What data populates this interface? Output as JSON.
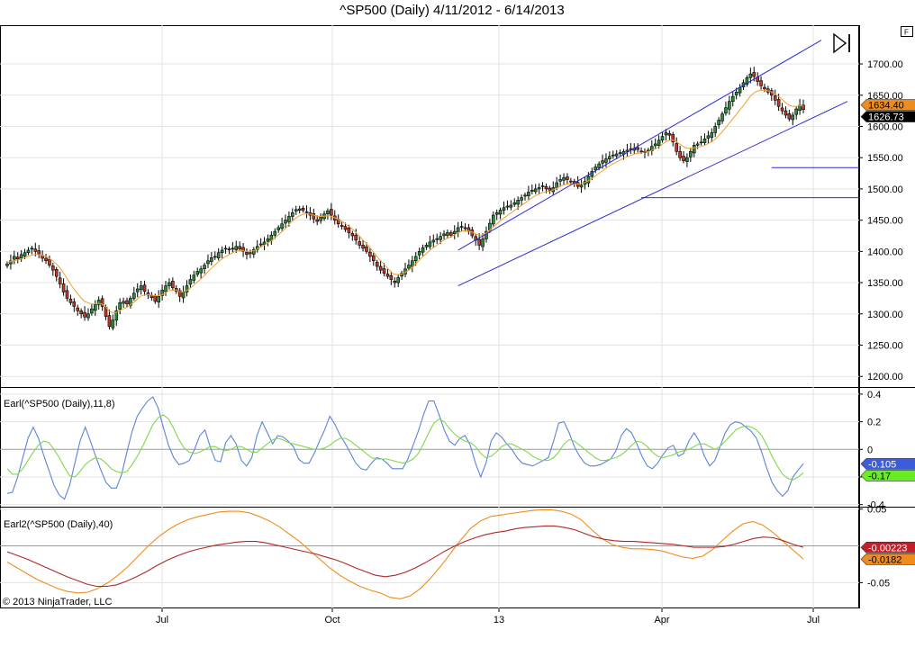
{
  "title": "^SP500 (Daily)  4/11/2012 - 6/14/2013",
  "copyright": "© 2013 NinjaTrader, LLC",
  "corner_button": "F",
  "x_ticks": [
    "Jul",
    "Oct",
    "13",
    "Apr",
    "Jul"
  ],
  "chart_data": [
    {
      "type": "candlestick",
      "title": "^SP500 (Daily)  4/11/2012 - 6/14/2013",
      "y_ticks": [
        "1700.00",
        "1650.00",
        "1600.00",
        "1550.00",
        "1500.00",
        "1450.00",
        "1400.00",
        "1350.00",
        "1300.00",
        "1250.00",
        "1200.00"
      ],
      "ylim": [
        1183,
        1762
      ],
      "grid": true,
      "price_marks": [
        {
          "label": "1634.40",
          "value": 1634.4,
          "color": "#f08c1c"
        },
        {
          "label": "1626.73",
          "value": 1626.73,
          "color": "#000000"
        }
      ],
      "close_series": [
        1380,
        1385,
        1392,
        1388,
        1395,
        1398,
        1402,
        1405,
        1400,
        1396,
        1389,
        1385,
        1378,
        1370,
        1360,
        1348,
        1335,
        1325,
        1318,
        1312,
        1305,
        1300,
        1295,
        1300,
        1308,
        1315,
        1322,
        1312,
        1296,
        1280,
        1290,
        1305,
        1318,
        1320,
        1316,
        1325,
        1333,
        1340,
        1345,
        1336,
        1330,
        1326,
        1320,
        1328,
        1338,
        1345,
        1350,
        1342,
        1336,
        1328,
        1335,
        1345,
        1355,
        1362,
        1368,
        1372,
        1378,
        1385,
        1390,
        1392,
        1398,
        1402,
        1405,
        1403,
        1405,
        1408,
        1404,
        1400,
        1395,
        1398,
        1403,
        1408,
        1412,
        1415,
        1420,
        1426,
        1432,
        1438,
        1444,
        1450,
        1456,
        1462,
        1467,
        1468,
        1466,
        1462,
        1458,
        1452,
        1448,
        1455,
        1460,
        1465,
        1458,
        1450,
        1444,
        1440,
        1435,
        1430,
        1425,
        1418,
        1410,
        1405,
        1400,
        1392,
        1385,
        1376,
        1370,
        1365,
        1360,
        1355,
        1350,
        1358,
        1365,
        1372,
        1378,
        1385,
        1392,
        1400,
        1406,
        1410,
        1415,
        1418,
        1420,
        1424,
        1428,
        1430,
        1426,
        1432,
        1438,
        1440,
        1438,
        1432,
        1425,
        1418,
        1410,
        1420,
        1432,
        1445,
        1458,
        1462,
        1466,
        1470,
        1472,
        1474,
        1478,
        1482,
        1486,
        1490,
        1495,
        1498,
        1500,
        1502,
        1505,
        1500,
        1498,
        1502,
        1510,
        1515,
        1518,
        1515,
        1512,
        1508,
        1504,
        1506,
        1512,
        1520,
        1528,
        1535,
        1540,
        1545,
        1548,
        1552,
        1554,
        1556,
        1558,
        1560,
        1562,
        1563,
        1565,
        1563,
        1560,
        1558,
        1562,
        1568,
        1572,
        1578,
        1584,
        1590,
        1586,
        1575,
        1560,
        1550,
        1545,
        1550,
        1560,
        1570,
        1572,
        1575,
        1580,
        1585,
        1590,
        1600,
        1610,
        1620,
        1630,
        1640,
        1648,
        1655,
        1662,
        1670,
        1678,
        1684,
        1680,
        1672,
        1665,
        1660,
        1655,
        1650,
        1642,
        1632,
        1625,
        1618,
        1612,
        1618,
        1628,
        1634,
        1627
      ],
      "ma_series": [
        1382,
        1384,
        1386,
        1386,
        1388,
        1390,
        1392,
        1394,
        1395,
        1395,
        1394,
        1392,
        1389,
        1385,
        1380,
        1374,
        1366,
        1357,
        1348,
        1340,
        1333,
        1326,
        1320,
        1318,
        1316,
        1316,
        1317,
        1316,
        1312,
        1305,
        1302,
        1302,
        1305,
        1308,
        1310,
        1314,
        1318,
        1323,
        1328,
        1330,
        1331,
        1330,
        1329,
        1329,
        1330,
        1333,
        1337,
        1338,
        1338,
        1336,
        1335,
        1337,
        1340,
        1345,
        1350,
        1355,
        1360,
        1366,
        1372,
        1377,
        1382,
        1387,
        1391,
        1394,
        1397,
        1400,
        1401,
        1401,
        1400,
        1400,
        1401,
        1403,
        1406,
        1409,
        1412,
        1416,
        1420,
        1425,
        1430,
        1435,
        1441,
        1447,
        1452,
        1456,
        1459,
        1460,
        1460,
        1459,
        1457,
        1456,
        1456,
        1457,
        1457,
        1455,
        1452,
        1449,
        1446,
        1442,
        1438,
        1433,
        1427,
        1421,
        1415,
        1409,
        1402,
        1395,
        1388,
        1382,
        1376,
        1370,
        1364,
        1363,
        1363,
        1365,
        1368,
        1372,
        1377,
        1383,
        1389,
        1394,
        1399,
        1404,
        1408,
        1412,
        1416,
        1420,
        1422,
        1425,
        1428,
        1431,
        1433,
        1433,
        1432,
        1430,
        1427,
        1426,
        1427,
        1431,
        1436,
        1441,
        1446,
        1451,
        1455,
        1459,
        1463,
        1467,
        1471,
        1475,
        1479,
        1483,
        1487,
        1490,
        1493,
        1495,
        1496,
        1497,
        1499,
        1502,
        1505,
        1507,
        1508,
        1508,
        1508,
        1508,
        1509,
        1511,
        1514,
        1518,
        1522,
        1526,
        1530,
        1534,
        1538,
        1541,
        1544,
        1547,
        1550,
        1552,
        1554,
        1556,
        1557,
        1558,
        1559,
        1560,
        1562,
        1565,
        1568,
        1572,
        1576,
        1578,
        1578,
        1575,
        1571,
        1567,
        1565,
        1565,
        1566,
        1567,
        1568,
        1570,
        1573,
        1576,
        1580,
        1586,
        1592,
        1599,
        1606,
        1613,
        1620,
        1627,
        1634,
        1642,
        1649,
        1654,
        1657,
        1658,
        1658,
        1657,
        1655,
        1652,
        1648,
        1643,
        1638,
        1634,
        1632,
        1632,
        1634,
        1632
      ]
    },
    {
      "type": "line",
      "title": "Earl(^SP500 (Daily),11,8)",
      "y_ticks": [
        "0.4",
        "0.2",
        "0",
        "-0.2",
        "-0.4"
      ],
      "ylim": [
        -0.415,
        0.445
      ],
      "price_marks": [
        {
          "label": "-0.105",
          "value": -0.105,
          "color": "#3b5ed8"
        },
        {
          "label": "-0.17",
          "value": -0.17,
          "color": "#66ee22"
        }
      ],
      "series": [
        {
          "color": "#5b84d6",
          "values": [
            -0.32,
            -0.31,
            -0.2,
            -0.06,
            0.08,
            0.16,
            0.08,
            -0.04,
            -0.15,
            -0.26,
            -0.33,
            -0.36,
            -0.26,
            -0.1,
            0.06,
            0.16,
            0.06,
            -0.05,
            -0.15,
            -0.24,
            -0.28,
            -0.28,
            -0.18,
            -0.02,
            0.13,
            0.24,
            0.3,
            0.35,
            0.38,
            0.3,
            0.16,
            0.03,
            -0.06,
            -0.11,
            -0.1,
            -0.08,
            0.0,
            0.1,
            0.14,
            0.02,
            -0.08,
            -0.09,
            0.05,
            0.1,
            0.04,
            -0.08,
            -0.12,
            -0.06,
            0.1,
            0.2,
            0.12,
            0.04,
            0.1,
            0.09,
            0.06,
            0.02,
            -0.07,
            -0.1,
            -0.1,
            -0.03,
            0.06,
            0.14,
            0.24,
            0.18,
            0.1,
            0.04,
            -0.03,
            -0.1,
            -0.14,
            -0.15,
            -0.1,
            -0.06,
            -0.07,
            -0.1,
            -0.14,
            -0.14,
            -0.14,
            -0.07,
            0.03,
            0.13,
            0.25,
            0.35,
            0.35,
            0.25,
            0.14,
            0.06,
            0.03,
            0.08,
            0.1,
            0.03,
            -0.1,
            -0.2,
            -0.1,
            0.06,
            0.12,
            0.09,
            0.04,
            0.0,
            -0.06,
            -0.1,
            -0.11,
            -0.12,
            -0.1,
            -0.08,
            -0.06,
            0.06,
            0.19,
            0.2,
            0.12,
            0.02,
            -0.05,
            -0.1,
            -0.12,
            -0.12,
            -0.11,
            -0.09,
            -0.07,
            -0.01,
            0.1,
            0.15,
            0.12,
            0.04,
            -0.05,
            -0.12,
            -0.14,
            -0.1,
            -0.04,
            0.01,
            0.03,
            -0.05,
            -0.03,
            0.06,
            0.12,
            0.06,
            -0.05,
            -0.12,
            -0.08,
            0.02,
            0.12,
            0.18,
            0.2,
            0.19,
            0.16,
            0.13,
            0.08,
            -0.02,
            -0.14,
            -0.24,
            -0.3,
            -0.34,
            -0.3,
            -0.2,
            -0.15,
            -0.105
          ]
        },
        {
          "color": "#7ed84a",
          "values": [
            -0.14,
            -0.18,
            -0.18,
            -0.14,
            -0.08,
            -0.02,
            0.03,
            0.06,
            0.05,
            0.0,
            -0.06,
            -0.13,
            -0.19,
            -0.2,
            -0.16,
            -0.11,
            -0.08,
            -0.06,
            -0.07,
            -0.1,
            -0.14,
            -0.16,
            -0.17,
            -0.16,
            -0.11,
            -0.05,
            0.02,
            0.1,
            0.18,
            0.23,
            0.25,
            0.22,
            0.15,
            0.07,
            0.01,
            -0.02,
            -0.03,
            -0.02,
            0.0,
            0.02,
            0.02,
            0.0,
            -0.01,
            0.0,
            0.02,
            0.02,
            0.0,
            -0.02,
            -0.02,
            0.01,
            0.04,
            0.07,
            0.08,
            0.07,
            0.05,
            0.04,
            0.03,
            0.02,
            0.01,
            0.0,
            0.0,
            0.01,
            0.03,
            0.06,
            0.08,
            0.08,
            0.06,
            0.03,
            0.0,
            -0.03,
            -0.06,
            -0.07,
            -0.07,
            -0.07,
            -0.08,
            -0.09,
            -0.1,
            -0.09,
            -0.07,
            -0.03,
            0.04,
            0.12,
            0.19,
            0.22,
            0.2,
            0.15,
            0.11,
            0.08,
            0.06,
            0.05,
            0.02,
            -0.03,
            -0.06,
            -0.05,
            -0.02,
            0.02,
            0.04,
            0.04,
            0.02,
            0.0,
            -0.02,
            -0.05,
            -0.07,
            -0.08,
            -0.08,
            -0.06,
            -0.02,
            0.04,
            0.07,
            0.06,
            0.03,
            0.0,
            -0.03,
            -0.06,
            -0.08,
            -0.08,
            -0.07,
            -0.06,
            -0.04,
            -0.01,
            0.03,
            0.06,
            0.05,
            0.02,
            -0.02,
            -0.05,
            -0.06,
            -0.05,
            -0.04,
            -0.02,
            -0.01,
            0.0,
            0.02,
            0.04,
            0.04,
            0.02,
            0.0,
            0.02,
            0.06,
            0.1,
            0.14,
            0.16,
            0.17,
            0.16,
            0.14,
            0.1,
            0.03,
            -0.05,
            -0.12,
            -0.18,
            -0.21,
            -0.22,
            -0.2,
            -0.17
          ]
        }
      ]
    },
    {
      "type": "line",
      "title": "Earl2(^SP500 (Daily),40)",
      "y_ticks": [
        "0.05",
        "-0.05"
      ],
      "ylim": [
        -0.085,
        0.052
      ],
      "price_marks": [
        {
          "label": "-0.00223",
          "value": -0.00223,
          "color": "#c41e2a"
        },
        {
          "label": "-0.0182",
          "value": -0.0182,
          "color": "#f08c1c"
        }
      ],
      "series": [
        {
          "color": "#f08c1c",
          "values": [
            -0.022,
            -0.03,
            -0.038,
            -0.046,
            -0.052,
            -0.058,
            -0.062,
            -0.064,
            -0.063,
            -0.058,
            -0.05,
            -0.04,
            -0.028,
            -0.014,
            0.0,
            0.012,
            0.022,
            0.03,
            0.036,
            0.04,
            0.043,
            0.046,
            0.047,
            0.047,
            0.045,
            0.04,
            0.034,
            0.026,
            0.016,
            0.006,
            -0.006,
            -0.018,
            -0.03,
            -0.04,
            -0.048,
            -0.055,
            -0.06,
            -0.064,
            -0.07,
            -0.072,
            -0.068,
            -0.058,
            -0.044,
            -0.028,
            -0.01,
            0.008,
            0.024,
            0.034,
            0.04,
            0.042,
            0.044,
            0.046,
            0.048,
            0.049,
            0.049,
            0.047,
            0.043,
            0.035,
            0.022,
            0.01,
            0.002,
            -0.002,
            -0.004,
            -0.004,
            -0.005,
            -0.007,
            -0.011,
            -0.015,
            -0.017,
            -0.014,
            -0.005,
            0.008,
            0.02,
            0.03,
            0.033,
            0.028,
            0.018,
            0.006,
            -0.006,
            -0.018
          ]
        },
        {
          "color": "#b32727",
          "values": [
            -0.008,
            -0.013,
            -0.018,
            -0.024,
            -0.03,
            -0.036,
            -0.042,
            -0.047,
            -0.052,
            -0.055,
            -0.055,
            -0.053,
            -0.048,
            -0.042,
            -0.035,
            -0.027,
            -0.02,
            -0.014,
            -0.009,
            -0.005,
            -0.002,
            0.001,
            0.003,
            0.005,
            0.006,
            0.006,
            0.004,
            0.001,
            -0.002,
            -0.005,
            -0.008,
            -0.011,
            -0.015,
            -0.019,
            -0.024,
            -0.03,
            -0.035,
            -0.04,
            -0.042,
            -0.04,
            -0.036,
            -0.03,
            -0.023,
            -0.015,
            -0.007,
            0.0,
            0.006,
            0.011,
            0.015,
            0.018,
            0.02,
            0.023,
            0.025,
            0.026,
            0.027,
            0.027,
            0.025,
            0.022,
            0.017,
            0.012,
            0.009,
            0.007,
            0.006,
            0.006,
            0.005,
            0.004,
            0.003,
            0.002,
            0.0,
            -0.002,
            -0.002,
            -0.002,
            -0.001,
            0.002,
            0.006,
            0.01,
            0.012,
            0.011,
            0.007,
            0.002,
            -0.002
          ]
        }
      ]
    }
  ],
  "panels": {
    "earl_label": "Earl(^SP500 (Daily),11,8)",
    "earl2_label": "Earl2(^SP500 (Daily),40)"
  }
}
